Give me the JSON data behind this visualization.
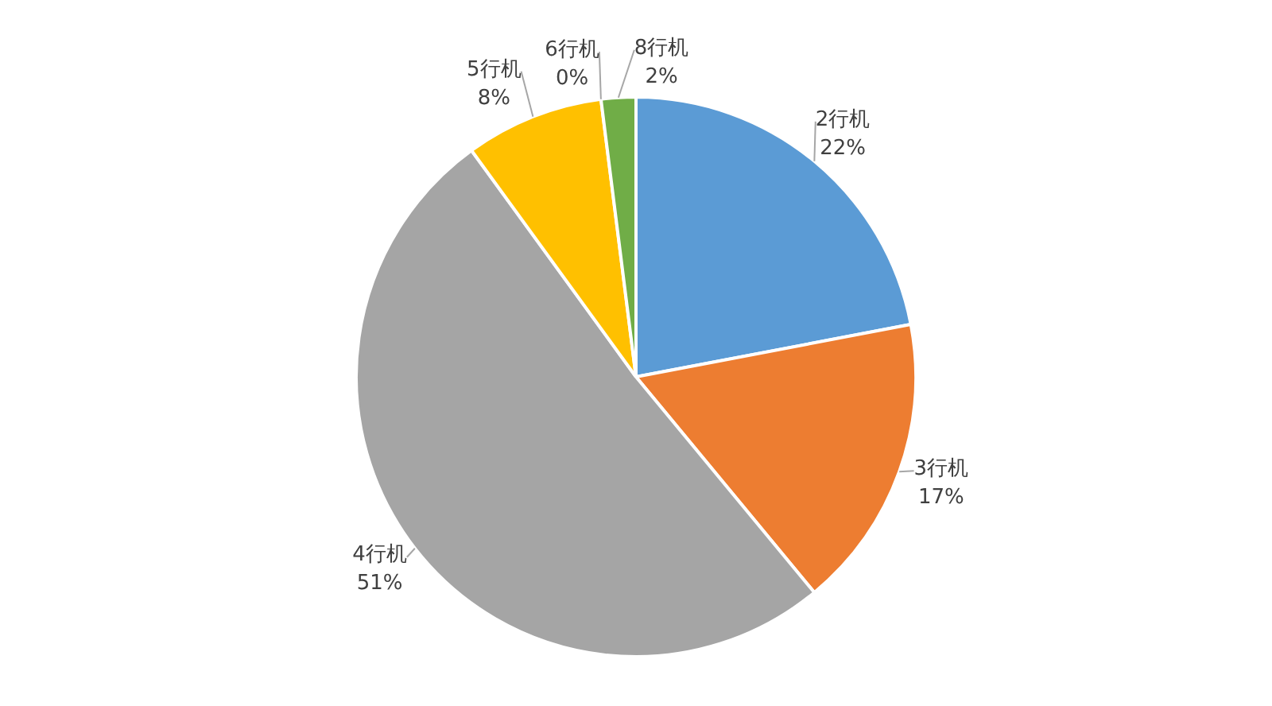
{
  "chart_data": {
    "type": "pie",
    "categories": [
      "2行机",
      "3行机",
      "4行机",
      "5行机",
      "6行机",
      "8行机"
    ],
    "values": [
      22,
      17,
      51,
      8,
      0,
      2
    ],
    "value_labels": [
      "22%",
      "17%",
      "51%",
      "8%",
      "0%",
      "2%"
    ],
    "colors": [
      "#5b9bd5",
      "#ed7d31",
      "#a5a5a5",
      "#ffc000",
      "#4472c4",
      "#70ad47"
    ],
    "legend": false
  }
}
